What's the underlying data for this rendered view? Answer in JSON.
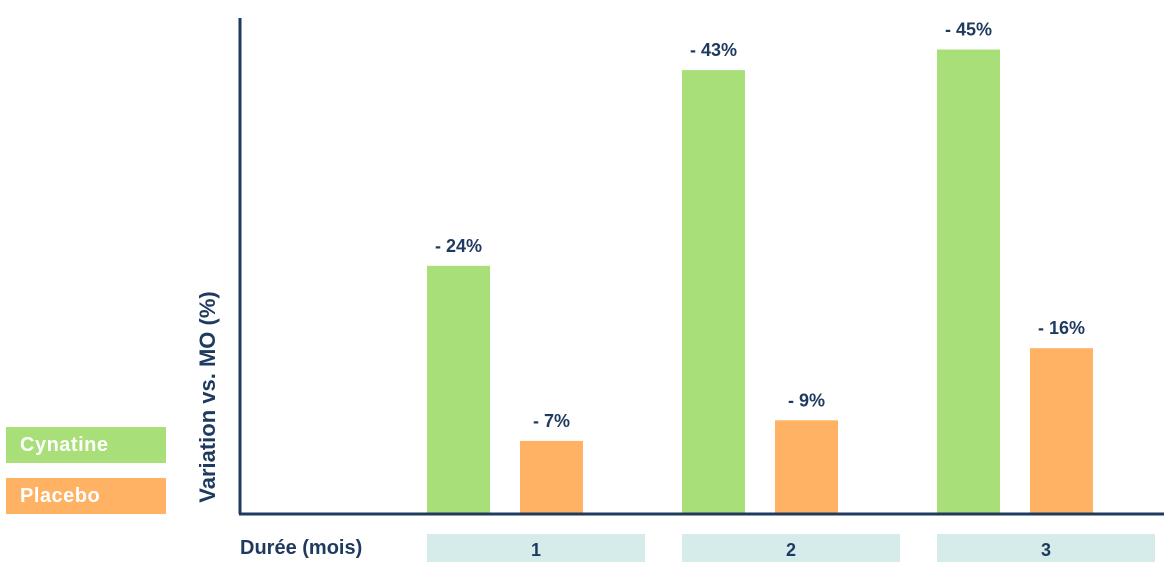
{
  "chart_data": {
    "type": "bar",
    "xlabel": "Durée (mois)",
    "ylabel": "Variation vs. MO (%)",
    "categories": [
      "1",
      "2",
      "3"
    ],
    "series": [
      {
        "name": "Cynatine",
        "values": [
          -24,
          -43,
          -45
        ],
        "labels": [
          "- 24%",
          "- 43%",
          "- 45%"
        ]
      },
      {
        "name": "Placebo",
        "values": [
          -7,
          -9,
          -16
        ],
        "labels": [
          "- 7%",
          "- 9%",
          "- 16%"
        ]
      }
    ],
    "ylim": [
      0,
      -47
    ],
    "grid": false,
    "legend": "left"
  },
  "colors": {
    "cynatine": "#a8df78",
    "placebo": "#ffb263",
    "axis": "#1f3a5f",
    "label": "#1f3a5f",
    "category_box": "#d6ecea"
  }
}
